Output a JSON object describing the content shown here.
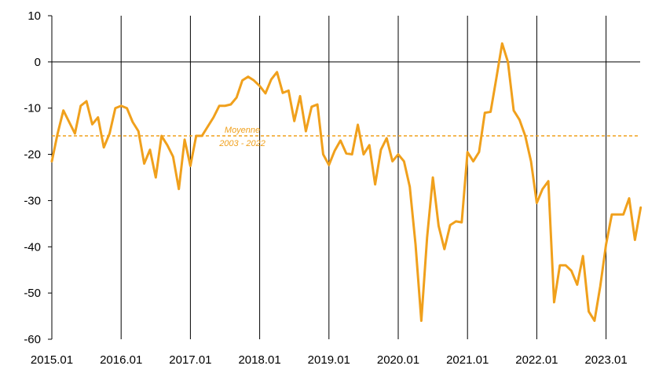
{
  "chart_data": {
    "type": "line",
    "title": "",
    "xlabel": "",
    "ylabel": "",
    "ylim": [
      -60,
      10
    ],
    "y_ticks": [
      "10",
      "0",
      "-10",
      "-20",
      "-30",
      "-40",
      "-50",
      "-60"
    ],
    "y_tick_values": [
      10,
      0,
      -10,
      -20,
      -30,
      -40,
      -50,
      -60
    ],
    "x_ticks": [
      "2015.01",
      "2016.01",
      "2017.01",
      "2018.01",
      "2019.01",
      "2020.01",
      "2021.01",
      "2022.01",
      "2023.01"
    ],
    "x_tick_index": [
      0,
      12,
      24,
      36,
      48,
      60,
      72,
      84,
      96
    ],
    "grid": "vertical lines at each year",
    "series": [
      {
        "color": "#F0A01C",
        "start": "2015.01",
        "frequency": "monthly",
        "values": [
          -21.5,
          -15.5,
          -10.5,
          -13,
          -15.5,
          -9.5,
          -8.5,
          -13.5,
          -12,
          -18.5,
          -15.5,
          -10,
          -9.5,
          -10,
          -13,
          -15,
          -22,
          -19,
          -25,
          -16,
          -18,
          -20.5,
          -27.5,
          -16.8,
          -22.5,
          -16,
          -16,
          -14,
          -12,
          -9.5,
          -9.5,
          -9.2,
          -7.7,
          -4,
          -3.2,
          -4,
          -5.2,
          -6.8,
          -3.8,
          -2.2,
          -6.7,
          -6.2,
          -12.8,
          -7.4,
          -15,
          -9.7,
          -9.2,
          -20,
          -22.3,
          -19.2,
          -17,
          -19.8,
          -20,
          -13.6,
          -20,
          -18,
          -26.5,
          -19,
          -16.5,
          -21.5,
          -20,
          -21.5,
          -27,
          -39.5,
          -56,
          -38,
          -25,
          -35.5,
          -40.5,
          -35.3,
          -34.5,
          -34.7,
          -19.5,
          -21.5,
          -19.5,
          -11,
          -10.8,
          -3.5,
          4,
          0,
          -10.5,
          -12.5,
          -16,
          -21.5,
          -30.5,
          -27.5,
          -25.8,
          -52,
          -44,
          -44,
          -45.2,
          -48.2,
          -42,
          -54,
          -56,
          -48.5,
          -39.5,
          -33,
          -33,
          -33,
          -29.5,
          -38.5,
          -31.5
        ]
      }
    ],
    "reference_line": {
      "value": -16,
      "color": "#F0A01C",
      "style": "dashed"
    },
    "annotation": [
      "Moyenne",
      "2003 - 2022"
    ]
  }
}
